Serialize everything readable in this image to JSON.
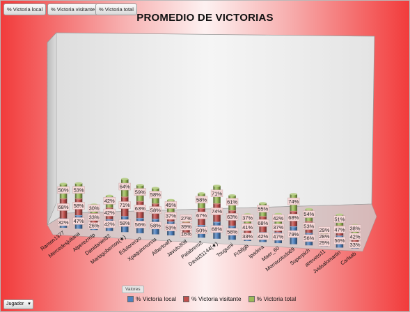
{
  "field_buttons": [
    "% Victoria local",
    "% Victoria visitante",
    "% Victoria total"
  ],
  "values_button": "Valores",
  "axis_field_button": "Jugador",
  "chart_data": {
    "type": "bar",
    "stacked": true,
    "title": "PROMEDIO DE VICTORIAS",
    "categories": [
      "Ramon1377",
      "Mercedesjuliana",
      "Atperezmtp",
      "Danidaniel82",
      "Mariagobernos(★)",
      "Edulorenzo",
      "Xpaquinmurcia",
      "Albertoaf1",
      "Javuto308",
      "Palabrero2",
      "David31144(★)",
      "Tsugumi",
      "Fcbfjgb",
      "Ipadera",
      "Maer_60",
      "Morrocotudo69",
      "Superpich",
      "atreveto11",
      "Jvidsalomartin",
      "Carlsab"
    ],
    "series": [
      {
        "name": "% Victoria local",
        "color": "#4f81bd",
        "values": [
          32,
          47,
          26,
          42,
          58,
          56,
          58,
          53,
          16,
          50,
          68,
          58,
          33,
          42,
          47,
          79,
          56,
          29,
          56,
          33
        ]
      },
      {
        "name": "% Victoria visitante",
        "color": "#c0504d",
        "values": [
          68,
          58,
          33,
          42,
          71,
          63,
          58,
          37,
          39,
          67,
          74,
          63,
          41,
          68,
          37,
          68,
          53,
          28,
          47,
          42
        ]
      },
      {
        "name": "% Victoria total",
        "color": "#9bbb59",
        "values": [
          50,
          53,
          30,
          42,
          64,
          59,
          58,
          45,
          27,
          58,
          71,
          61,
          37,
          55,
          42,
          74,
          54,
          29,
          51,
          38
        ]
      }
    ],
    "data_labels": true,
    "value_format": "percent",
    "legend": "bottom",
    "grid": false
  }
}
